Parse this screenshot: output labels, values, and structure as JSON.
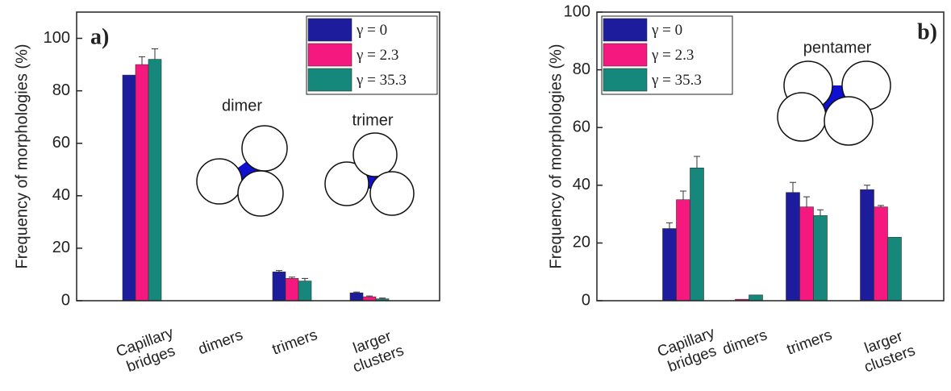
{
  "chart_data": [
    {
      "type": "bar",
      "panel_label": "a)",
      "y_label": "Frequency of morphologies (%)",
      "categories": [
        "Capillary bridges",
        "dimers",
        "trimers",
        "larger clusters"
      ],
      "series": [
        {
          "name": "γ = 0",
          "color": "#1c1c9c",
          "values": [
            86,
            0,
            11,
            3
          ],
          "errors": [
            null,
            null,
            0.5,
            0.3
          ]
        },
        {
          "name": "γ = 2.3",
          "color": "#f5187f",
          "values": [
            90,
            0,
            8.5,
            1.5
          ],
          "errors": [
            3,
            null,
            0.5,
            0.3
          ]
        },
        {
          "name": "γ = 35.3",
          "color": "#15877b",
          "values": [
            92,
            0,
            7.5,
            0.7
          ],
          "errors": [
            4,
            null,
            1,
            0.3
          ]
        }
      ],
      "ylim": [
        0,
        110
      ],
      "yticks": [
        0,
        20,
        40,
        60,
        80,
        100
      ],
      "legend": "upper right",
      "annotations": [
        "dimer",
        "trimer"
      ]
    },
    {
      "type": "bar",
      "panel_label": "b)",
      "y_label": "Frequency of morphologies (%)",
      "categories": [
        "Capillary bridges",
        "dimers",
        "trimers",
        "larger clusters"
      ],
      "series": [
        {
          "name": "γ = 0",
          "color": "#1c1c9c",
          "values": [
            25,
            0,
            37.5,
            38.5
          ],
          "errors": [
            2,
            null,
            3.5,
            1.5
          ]
        },
        {
          "name": "γ = 2.3",
          "color": "#f5187f",
          "values": [
            35,
            0.5,
            32.5,
            32.5
          ],
          "errors": [
            3,
            null,
            3.5,
            0.5
          ]
        },
        {
          "name": "γ = 35.3",
          "color": "#15877b",
          "values": [
            46,
            2,
            29.5,
            22
          ],
          "errors": [
            4,
            null,
            2,
            null
          ]
        }
      ],
      "ylim": [
        0,
        100
      ],
      "yticks": [
        0,
        20,
        40,
        60,
        80,
        100
      ],
      "legend": "upper left",
      "annotations": [
        "pentamer"
      ]
    }
  ]
}
